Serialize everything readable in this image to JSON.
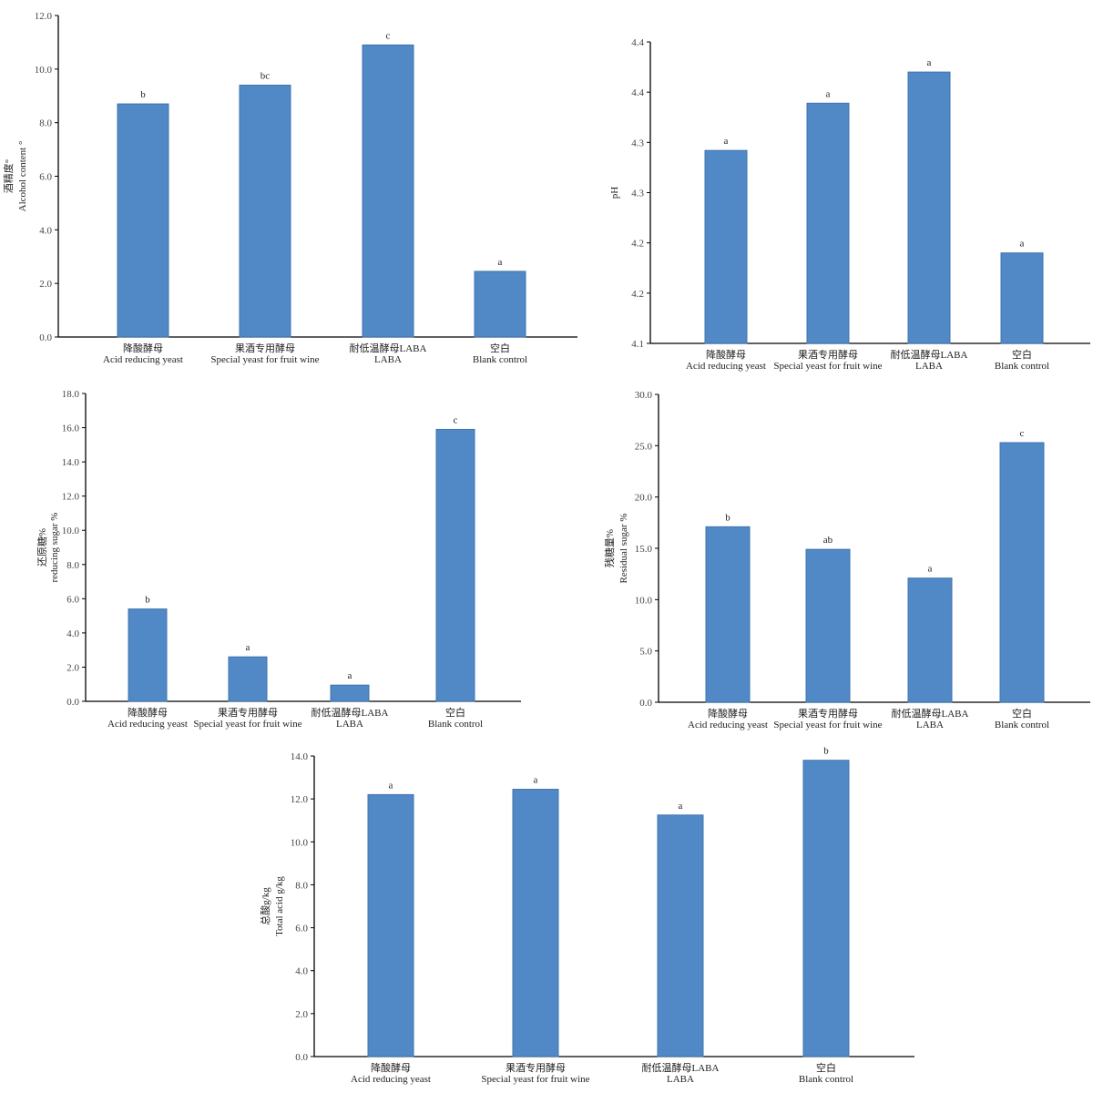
{
  "colors": {
    "bar": "#5089C6",
    "bar_edge": "#3F74AE",
    "axis": "#000000"
  },
  "chart_data": [
    {
      "type": "bar",
      "ylabel_lines": [
        "酒精度°",
        "Alcohol content °"
      ],
      "ylim": [
        0,
        12
      ],
      "yticks": [
        "0.0",
        "2.0",
        "4.0",
        "6.0",
        "8.0",
        "10.0",
        "12.0"
      ],
      "categories": [
        [
          "降酸酵母",
          "Acid reducing yeast"
        ],
        [
          "果酒专用酵母",
          "Special yeast for fruit wine"
        ],
        [
          "耐低温酵母LABA",
          "LABA"
        ],
        [
          "空白",
          "Blank control"
        ]
      ],
      "values": [
        8.7,
        9.4,
        10.9,
        2.45
      ],
      "significance": [
        "b",
        "bc",
        "c",
        "a"
      ]
    },
    {
      "type": "bar",
      "ylabel_lines": [
        "pH"
      ],
      "ylim": [
        4.1,
        4.4
      ],
      "yticks": [
        "4.1",
        "4.2",
        "4.2",
        "4.3",
        "4.3",
        "4.4",
        "4.4"
      ],
      "categories": [
        [
          "降酸酵母",
          "Acid reducing yeast"
        ],
        [
          "果酒专用酵母",
          "Special yeast for fruit wine"
        ],
        [
          "耐低温酵母LABA",
          "LABA"
        ],
        [
          "空白",
          "Blank control"
        ]
      ],
      "values": [
        4.292,
        4.339,
        4.37,
        4.19
      ],
      "significance": [
        "a",
        "a",
        "a",
        "a"
      ]
    },
    {
      "type": "bar",
      "ylabel_lines": [
        "还原糖%",
        "reducing sugar %"
      ],
      "ylim": [
        0,
        18
      ],
      "yticks": [
        "0.0",
        "2.0",
        "4.0",
        "6.0",
        "8.0",
        "10.0",
        "12.0",
        "14.0",
        "16.0",
        "18.0"
      ],
      "categories": [
        [
          "降酸酵母",
          "Acid reducing yeast"
        ],
        [
          "果酒专用酵母",
          "Special yeast for fruit wine"
        ],
        [
          "耐低温酵母LABA",
          "LABA"
        ],
        [
          "空白",
          "Blank control"
        ]
      ],
      "values": [
        5.4,
        2.6,
        0.95,
        15.9
      ],
      "significance": [
        "b",
        "a",
        "a",
        "c"
      ]
    },
    {
      "type": "bar",
      "ylabel_lines": [
        "残糖量%",
        "Residual sugar %"
      ],
      "ylim": [
        0,
        30
      ],
      "yticks": [
        "0.0",
        "5.0",
        "10.0",
        "15.0",
        "20.0",
        "25.0",
        "30.0"
      ],
      "categories": [
        [
          "降酸酵母",
          "Acid reducing yeast"
        ],
        [
          "果酒专用酵母",
          "Special yeast for fruit wine"
        ],
        [
          "耐低温酵母LABA",
          "LABA"
        ],
        [
          "空白",
          "Blank control"
        ]
      ],
      "values": [
        17.1,
        14.9,
        12.1,
        25.3
      ],
      "significance": [
        "b",
        "ab",
        "a",
        "c"
      ]
    },
    {
      "type": "bar",
      "ylabel_lines": [
        "总酸g/kg",
        "Total acid g/kg"
      ],
      "ylim": [
        0,
        14
      ],
      "yticks": [
        "0.0",
        "2.0",
        "4.0",
        "6.0",
        "8.0",
        "10.0",
        "12.0",
        "14.0"
      ],
      "categories": [
        [
          "降酸酵母",
          "Acid reducing yeast"
        ],
        [
          "果酒专用酵母",
          "Special yeast for fruit wine"
        ],
        [
          "耐低温酵母LABA",
          "LABA"
        ],
        [
          "空白",
          "Blank control"
        ]
      ],
      "values": [
        12.2,
        12.45,
        11.25,
        13.8
      ],
      "significance": [
        "a",
        "a",
        "a",
        "b"
      ]
    }
  ]
}
